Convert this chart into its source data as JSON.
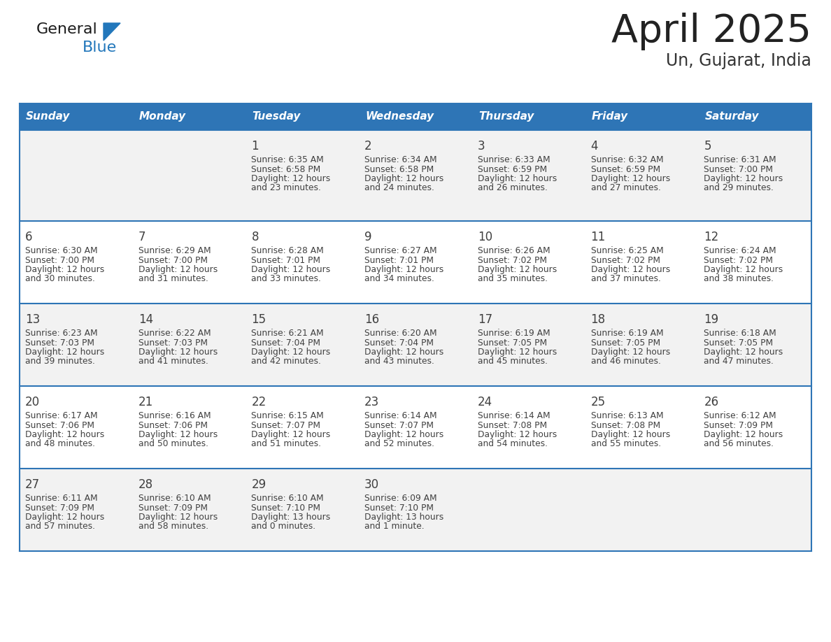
{
  "title": "April 2025",
  "subtitle": "Un, Gujarat, India",
  "header_bg": "#2E75B6",
  "header_text_color": "#FFFFFF",
  "days_of_week": [
    "Sunday",
    "Monday",
    "Tuesday",
    "Wednesday",
    "Thursday",
    "Friday",
    "Saturday"
  ],
  "row_bg_odd": "#F2F2F2",
  "row_bg_even": "#FFFFFF",
  "cell_border_color": "#2E75B6",
  "text_color": "#404040",
  "calendar_data": [
    [
      {
        "day": "",
        "sunrise": "",
        "sunset": "",
        "daylight": ""
      },
      {
        "day": "",
        "sunrise": "",
        "sunset": "",
        "daylight": ""
      },
      {
        "day": "1",
        "sunrise": "6:35 AM",
        "sunset": "6:58 PM",
        "daylight": "12 hours\nand 23 minutes."
      },
      {
        "day": "2",
        "sunrise": "6:34 AM",
        "sunset": "6:58 PM",
        "daylight": "12 hours\nand 24 minutes."
      },
      {
        "day": "3",
        "sunrise": "6:33 AM",
        "sunset": "6:59 PM",
        "daylight": "12 hours\nand 26 minutes."
      },
      {
        "day": "4",
        "sunrise": "6:32 AM",
        "sunset": "6:59 PM",
        "daylight": "12 hours\nand 27 minutes."
      },
      {
        "day": "5",
        "sunrise": "6:31 AM",
        "sunset": "7:00 PM",
        "daylight": "12 hours\nand 29 minutes."
      }
    ],
    [
      {
        "day": "6",
        "sunrise": "6:30 AM",
        "sunset": "7:00 PM",
        "daylight": "12 hours\nand 30 minutes."
      },
      {
        "day": "7",
        "sunrise": "6:29 AM",
        "sunset": "7:00 PM",
        "daylight": "12 hours\nand 31 minutes."
      },
      {
        "day": "8",
        "sunrise": "6:28 AM",
        "sunset": "7:01 PM",
        "daylight": "12 hours\nand 33 minutes."
      },
      {
        "day": "9",
        "sunrise": "6:27 AM",
        "sunset": "7:01 PM",
        "daylight": "12 hours\nand 34 minutes."
      },
      {
        "day": "10",
        "sunrise": "6:26 AM",
        "sunset": "7:02 PM",
        "daylight": "12 hours\nand 35 minutes."
      },
      {
        "day": "11",
        "sunrise": "6:25 AM",
        "sunset": "7:02 PM",
        "daylight": "12 hours\nand 37 minutes."
      },
      {
        "day": "12",
        "sunrise": "6:24 AM",
        "sunset": "7:02 PM",
        "daylight": "12 hours\nand 38 minutes."
      }
    ],
    [
      {
        "day": "13",
        "sunrise": "6:23 AM",
        "sunset": "7:03 PM",
        "daylight": "12 hours\nand 39 minutes."
      },
      {
        "day": "14",
        "sunrise": "6:22 AM",
        "sunset": "7:03 PM",
        "daylight": "12 hours\nand 41 minutes."
      },
      {
        "day": "15",
        "sunrise": "6:21 AM",
        "sunset": "7:04 PM",
        "daylight": "12 hours\nand 42 minutes."
      },
      {
        "day": "16",
        "sunrise": "6:20 AM",
        "sunset": "7:04 PM",
        "daylight": "12 hours\nand 43 minutes."
      },
      {
        "day": "17",
        "sunrise": "6:19 AM",
        "sunset": "7:05 PM",
        "daylight": "12 hours\nand 45 minutes."
      },
      {
        "day": "18",
        "sunrise": "6:19 AM",
        "sunset": "7:05 PM",
        "daylight": "12 hours\nand 46 minutes."
      },
      {
        "day": "19",
        "sunrise": "6:18 AM",
        "sunset": "7:05 PM",
        "daylight": "12 hours\nand 47 minutes."
      }
    ],
    [
      {
        "day": "20",
        "sunrise": "6:17 AM",
        "sunset": "7:06 PM",
        "daylight": "12 hours\nand 48 minutes."
      },
      {
        "day": "21",
        "sunrise": "6:16 AM",
        "sunset": "7:06 PM",
        "daylight": "12 hours\nand 50 minutes."
      },
      {
        "day": "22",
        "sunrise": "6:15 AM",
        "sunset": "7:07 PM",
        "daylight": "12 hours\nand 51 minutes."
      },
      {
        "day": "23",
        "sunrise": "6:14 AM",
        "sunset": "7:07 PM",
        "daylight": "12 hours\nand 52 minutes."
      },
      {
        "day": "24",
        "sunrise": "6:14 AM",
        "sunset": "7:08 PM",
        "daylight": "12 hours\nand 54 minutes."
      },
      {
        "day": "25",
        "sunrise": "6:13 AM",
        "sunset": "7:08 PM",
        "daylight": "12 hours\nand 55 minutes."
      },
      {
        "day": "26",
        "sunrise": "6:12 AM",
        "sunset": "7:09 PM",
        "daylight": "12 hours\nand 56 minutes."
      }
    ],
    [
      {
        "day": "27",
        "sunrise": "6:11 AM",
        "sunset": "7:09 PM",
        "daylight": "12 hours\nand 57 minutes."
      },
      {
        "day": "28",
        "sunrise": "6:10 AM",
        "sunset": "7:09 PM",
        "daylight": "12 hours\nand 58 minutes."
      },
      {
        "day": "29",
        "sunrise": "6:10 AM",
        "sunset": "7:10 PM",
        "daylight": "13 hours\nand 0 minutes."
      },
      {
        "day": "30",
        "sunrise": "6:09 AM",
        "sunset": "7:10 PM",
        "daylight": "13 hours\nand 1 minute."
      },
      {
        "day": "",
        "sunrise": "",
        "sunset": "",
        "daylight": ""
      },
      {
        "day": "",
        "sunrise": "",
        "sunset": "",
        "daylight": ""
      },
      {
        "day": "",
        "sunrise": "",
        "sunset": "",
        "daylight": ""
      }
    ]
  ],
  "logo_color_general": "#1a1a1a",
  "logo_color_blue": "#2277BB",
  "logo_triangle_color": "#2277BB",
  "fig_width": 11.88,
  "fig_height": 9.18,
  "dpi": 100
}
